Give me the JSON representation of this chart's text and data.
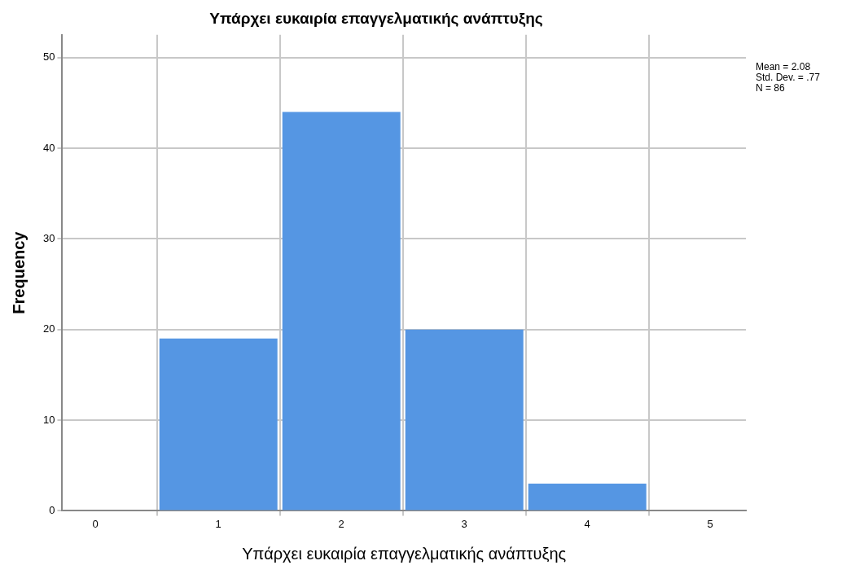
{
  "chart_data": {
    "type": "histogram",
    "title": "Υπάρχει ευκαιρία επαγγελματικής ανάπτυξης",
    "xlabel": "Υπάρχει ευκαιρία επαγγελματικής ανάπτυξης",
    "ylabel": "Frequency",
    "bins": [
      0.5,
      1.5,
      2.5,
      3.5,
      4.5
    ],
    "values": [
      19,
      44,
      20,
      3
    ],
    "color": "#5596e3",
    "xlim": [
      -0.27,
      5.29
    ],
    "xticks": [
      0,
      1,
      2,
      3,
      4,
      5
    ],
    "ylim": [
      0,
      52.5
    ],
    "yticks": [
      0,
      10,
      20,
      30,
      40,
      50
    ],
    "grid": true,
    "legend": false,
    "annotations": [
      "Mean = 2.08",
      "Std. Dev. = .77",
      "N = 86"
    ]
  }
}
